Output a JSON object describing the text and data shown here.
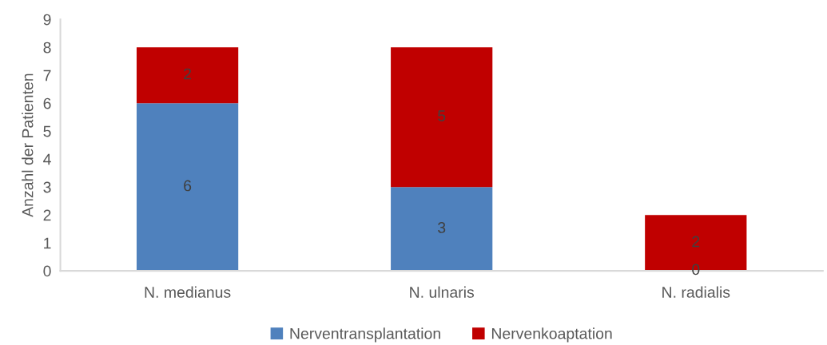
{
  "chart_data": {
    "type": "bar",
    "stacked": true,
    "ylabel": "Anzahl der Patienten",
    "categories": [
      "N. medianus",
      "N. ulnaris",
      "N. radialis"
    ],
    "series": [
      {
        "name": "Nerventransplantation",
        "color": "#4f81bd",
        "values": [
          6,
          3,
          0
        ]
      },
      {
        "name": "Nervenkoaptation",
        "color": "#c00000",
        "values": [
          2,
          5,
          2
        ]
      }
    ],
    "ylim": [
      0,
      9
    ],
    "yticks": [
      0,
      1,
      2,
      3,
      4,
      5,
      6,
      7,
      8,
      9
    ],
    "data_labels": true,
    "legend": "bottom"
  }
}
